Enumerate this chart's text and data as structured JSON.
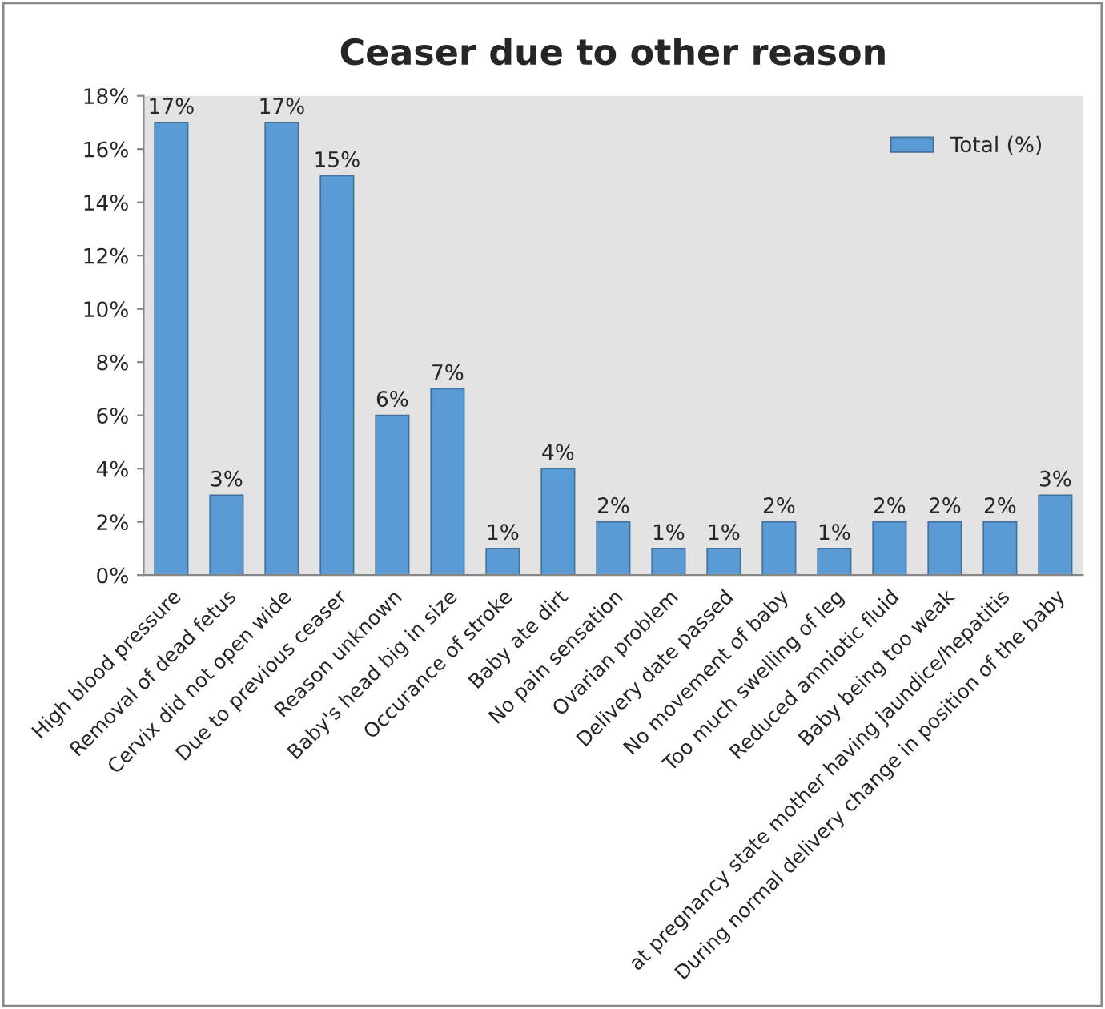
{
  "chart_data": {
    "type": "bar",
    "title": "Ceaser due to other reason",
    "categories": [
      "High blood pressure",
      "Removal of dead fetus",
      "Cervix did not open wide",
      "Due to previous ceaser",
      "Reason unknown",
      "Baby's head big in size",
      "Occurance of stroke",
      "Baby ate dirt",
      "No pain sensation",
      "Ovarian problem",
      "Delivery date passed",
      "No movement of baby",
      "Too much swelling of leg",
      "Reduced amniotic fluid",
      "Baby being too weak",
      "at pregnancy state mother having jaundice/hepatitis",
      "During normal delivery change in position of the baby"
    ],
    "series": [
      {
        "name": "Total (%)",
        "color": "#5b9bd5",
        "values": [
          17,
          3,
          17,
          15,
          6,
          7,
          1,
          4,
          2,
          1,
          1,
          2,
          1,
          2,
          2,
          2,
          3
        ],
        "value_labels": [
          "17%",
          "3%",
          "17%",
          "15%",
          "6%",
          "7%",
          "1%",
          "4%",
          "2%",
          "1%",
          "1%",
          "2%",
          "1%",
          "2%",
          "2%",
          "2%",
          "3%"
        ]
      }
    ],
    "ylim": [
      0,
      18
    ],
    "yticks": [
      {
        "value": 0,
        "label": "0%"
      },
      {
        "value": 2,
        "label": "2%"
      },
      {
        "value": 4,
        "label": "4%"
      },
      {
        "value": 6,
        "label": "6%"
      },
      {
        "value": 8,
        "label": "8%"
      },
      {
        "value": 10,
        "label": "10%"
      },
      {
        "value": 12,
        "label": "12%"
      },
      {
        "value": 14,
        "label": "14%"
      },
      {
        "value": 16,
        "label": "16%"
      },
      {
        "value": 18,
        "label": "18%"
      }
    ],
    "grid": false,
    "legend": "top right"
  }
}
